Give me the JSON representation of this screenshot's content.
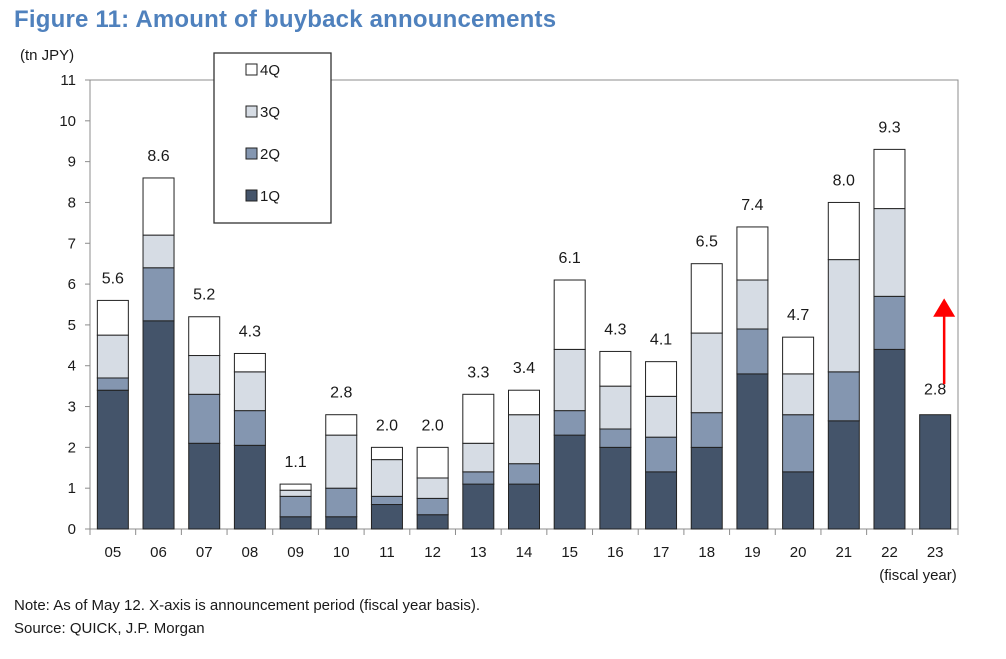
{
  "figure": {
    "title": "Figure 11: Amount of buyback announcements",
    "unit_label": "(tn JPY)",
    "note": "Note: As of May 12. X-axis is announcement period (fiscal year basis).",
    "source": "Source: QUICK, J.P. Morgan"
  },
  "colors": {
    "q1": "#44546a",
    "q2": "#8496b0",
    "q3": "#d6dce4",
    "q4": "#ffffff",
    "outline": "#222222",
    "arrow": "#ff0000",
    "title": "#4f81bd"
  },
  "chart_data": {
    "type": "bar",
    "stacked": true,
    "categories": [
      "05",
      "06",
      "07",
      "08",
      "09",
      "10",
      "11",
      "12",
      "13",
      "14",
      "15",
      "16",
      "17",
      "18",
      "19",
      "20",
      "21",
      "22",
      "23"
    ],
    "x_unit_label": "(fiscal year)",
    "ylim": [
      0,
      11
    ],
    "yticks": [
      0,
      1,
      2,
      3,
      4,
      5,
      6,
      7,
      8,
      9,
      10,
      11
    ],
    "grid": false,
    "legend": {
      "placement": "top-left",
      "order": [
        "4Q",
        "3Q",
        "2Q",
        "1Q"
      ]
    },
    "series": [
      {
        "name": "1Q",
        "color_key": "q1",
        "values": [
          3.4,
          5.1,
          2.1,
          2.05,
          0.3,
          0.3,
          0.6,
          0.35,
          1.1,
          1.1,
          2.3,
          2.0,
          1.4,
          2.0,
          3.8,
          1.4,
          2.65,
          4.4,
          2.8
        ]
      },
      {
        "name": "2Q",
        "color_key": "q2",
        "values": [
          0.3,
          1.3,
          1.2,
          0.85,
          0.5,
          0.7,
          0.2,
          0.4,
          0.3,
          0.5,
          0.6,
          0.45,
          0.85,
          0.85,
          1.1,
          1.4,
          1.2,
          1.3,
          0
        ]
      },
      {
        "name": "3Q",
        "color_key": "q3",
        "values": [
          1.05,
          0.8,
          0.95,
          0.95,
          0.15,
          1.3,
          0.9,
          0.5,
          0.7,
          1.2,
          1.5,
          1.05,
          1.0,
          1.95,
          1.2,
          1.0,
          2.75,
          2.15,
          0
        ]
      },
      {
        "name": "4Q",
        "color_key": "q4",
        "values": [
          0.85,
          1.4,
          0.95,
          0.45,
          0.15,
          0.5,
          0.3,
          0.75,
          1.2,
          0.6,
          1.7,
          0.85,
          0.85,
          1.7,
          1.3,
          0.9,
          1.4,
          1.45,
          0
        ]
      }
    ],
    "totals": [
      "5.6",
      "8.6",
      "5.2",
      "4.3",
      "1.1",
      "2.8",
      "2.0",
      "2.0",
      "3.3",
      "3.4",
      "6.1",
      "4.3",
      "4.1",
      "6.5",
      "7.4",
      "4.7",
      "8.0",
      "9.3",
      "2.8"
    ],
    "annotation": {
      "type": "up-arrow",
      "category": "23"
    }
  }
}
